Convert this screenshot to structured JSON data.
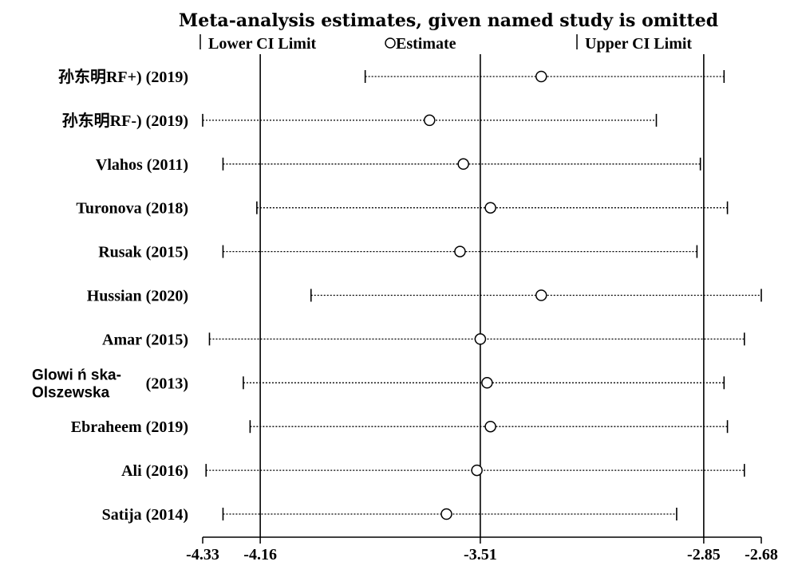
{
  "chart_data": {
    "type": "sensitivity-forest",
    "title": "Meta-analysis estimates, given named study is omitted",
    "legend": {
      "lower_label": "Lower CI Limit",
      "estimate_label": "Estimate",
      "upper_label": "Upper CI Limit"
    },
    "x_ticks": [
      -4.33,
      -4.16,
      -3.51,
      -2.85,
      -2.68
    ],
    "x_tick_labels": [
      "-4.33",
      "-4.16",
      "-3.51",
      "-2.85",
      "-2.68"
    ],
    "reference_lines": [
      -4.16,
      -3.51,
      -2.85
    ],
    "xlim": [
      -4.33,
      -2.68
    ],
    "rows": [
      {
        "name_lines": [
          "孙东明RF+)"
        ],
        "year": "(2019)",
        "lower": -3.85,
        "estimate": -3.33,
        "upper": -2.79
      },
      {
        "name_lines": [
          "孙东明RF-)"
        ],
        "year": "(2019)",
        "lower": -4.33,
        "estimate": -3.66,
        "upper": -2.99
      },
      {
        "name_lines": [
          "Vlahos"
        ],
        "year": "(2011)",
        "lower": -4.27,
        "estimate": -3.56,
        "upper": -2.86
      },
      {
        "name_lines": [
          "Turonova"
        ],
        "year": "(2018)",
        "lower": -4.17,
        "estimate": -3.48,
        "upper": -2.78
      },
      {
        "name_lines": [
          "Rusak"
        ],
        "year": "(2015)",
        "lower": -4.27,
        "estimate": -3.57,
        "upper": -2.87
      },
      {
        "name_lines": [
          "Hussian"
        ],
        "year": "(2020)",
        "lower": -4.01,
        "estimate": -3.33,
        "upper": -2.68
      },
      {
        "name_lines": [
          "Amar"
        ],
        "year": "(2015)",
        "lower": -4.31,
        "estimate": -3.51,
        "upper": -2.73
      },
      {
        "name_lines": [
          "Glowi ń ska-",
          "Olszewska"
        ],
        "year": "(2013)",
        "lower": -4.21,
        "estimate": -3.49,
        "upper": -2.79
      },
      {
        "name_lines": [
          "Ebraheem"
        ],
        "year": "(2019)",
        "lower": -4.19,
        "estimate": -3.48,
        "upper": -2.78
      },
      {
        "name_lines": [
          "Ali"
        ],
        "year": "(2016)",
        "lower": -4.32,
        "estimate": -3.52,
        "upper": -2.73
      },
      {
        "name_lines": [
          "Satija"
        ],
        "year": "(2014)",
        "lower": -4.27,
        "estimate": -3.61,
        "upper": -2.93
      }
    ]
  }
}
